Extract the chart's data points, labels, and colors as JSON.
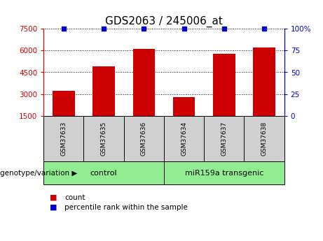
{
  "title": "GDS2063 / 245006_at",
  "samples": [
    "GSM37633",
    "GSM37635",
    "GSM37636",
    "GSM37634",
    "GSM37637",
    "GSM37638"
  ],
  "bar_values": [
    3200,
    4900,
    6100,
    2800,
    5800,
    6200
  ],
  "percentile_values": [
    100,
    100,
    100,
    100,
    100,
    100
  ],
  "ylim_left": [
    1500,
    7500
  ],
  "ylim_right": [
    0,
    100
  ],
  "yticks_left": [
    1500,
    3000,
    4500,
    6000,
    7500
  ],
  "yticks_right": [
    0,
    25,
    50,
    75,
    100
  ],
  "bar_color": "#cc0000",
  "percentile_color": "#0000cc",
  "groups": [
    {
      "label": "control",
      "indices": [
        0,
        1,
        2
      ]
    },
    {
      "label": "miR159a transgenic",
      "indices": [
        3,
        4,
        5
      ]
    }
  ],
  "group_colors": [
    "#90ee90",
    "#90ee90"
  ],
  "sample_box_color": "#d0d0d0",
  "legend_count_label": "count",
  "legend_percentile_label": "percentile rank within the sample",
  "genotype_label": "genotype/variation",
  "background_color": "#ffffff",
  "title_fontsize": 11,
  "tick_fontsize": 7.5,
  "sample_fontsize": 6.5,
  "group_fontsize": 8,
  "legend_fontsize": 7.5,
  "genotype_fontsize": 7.5
}
